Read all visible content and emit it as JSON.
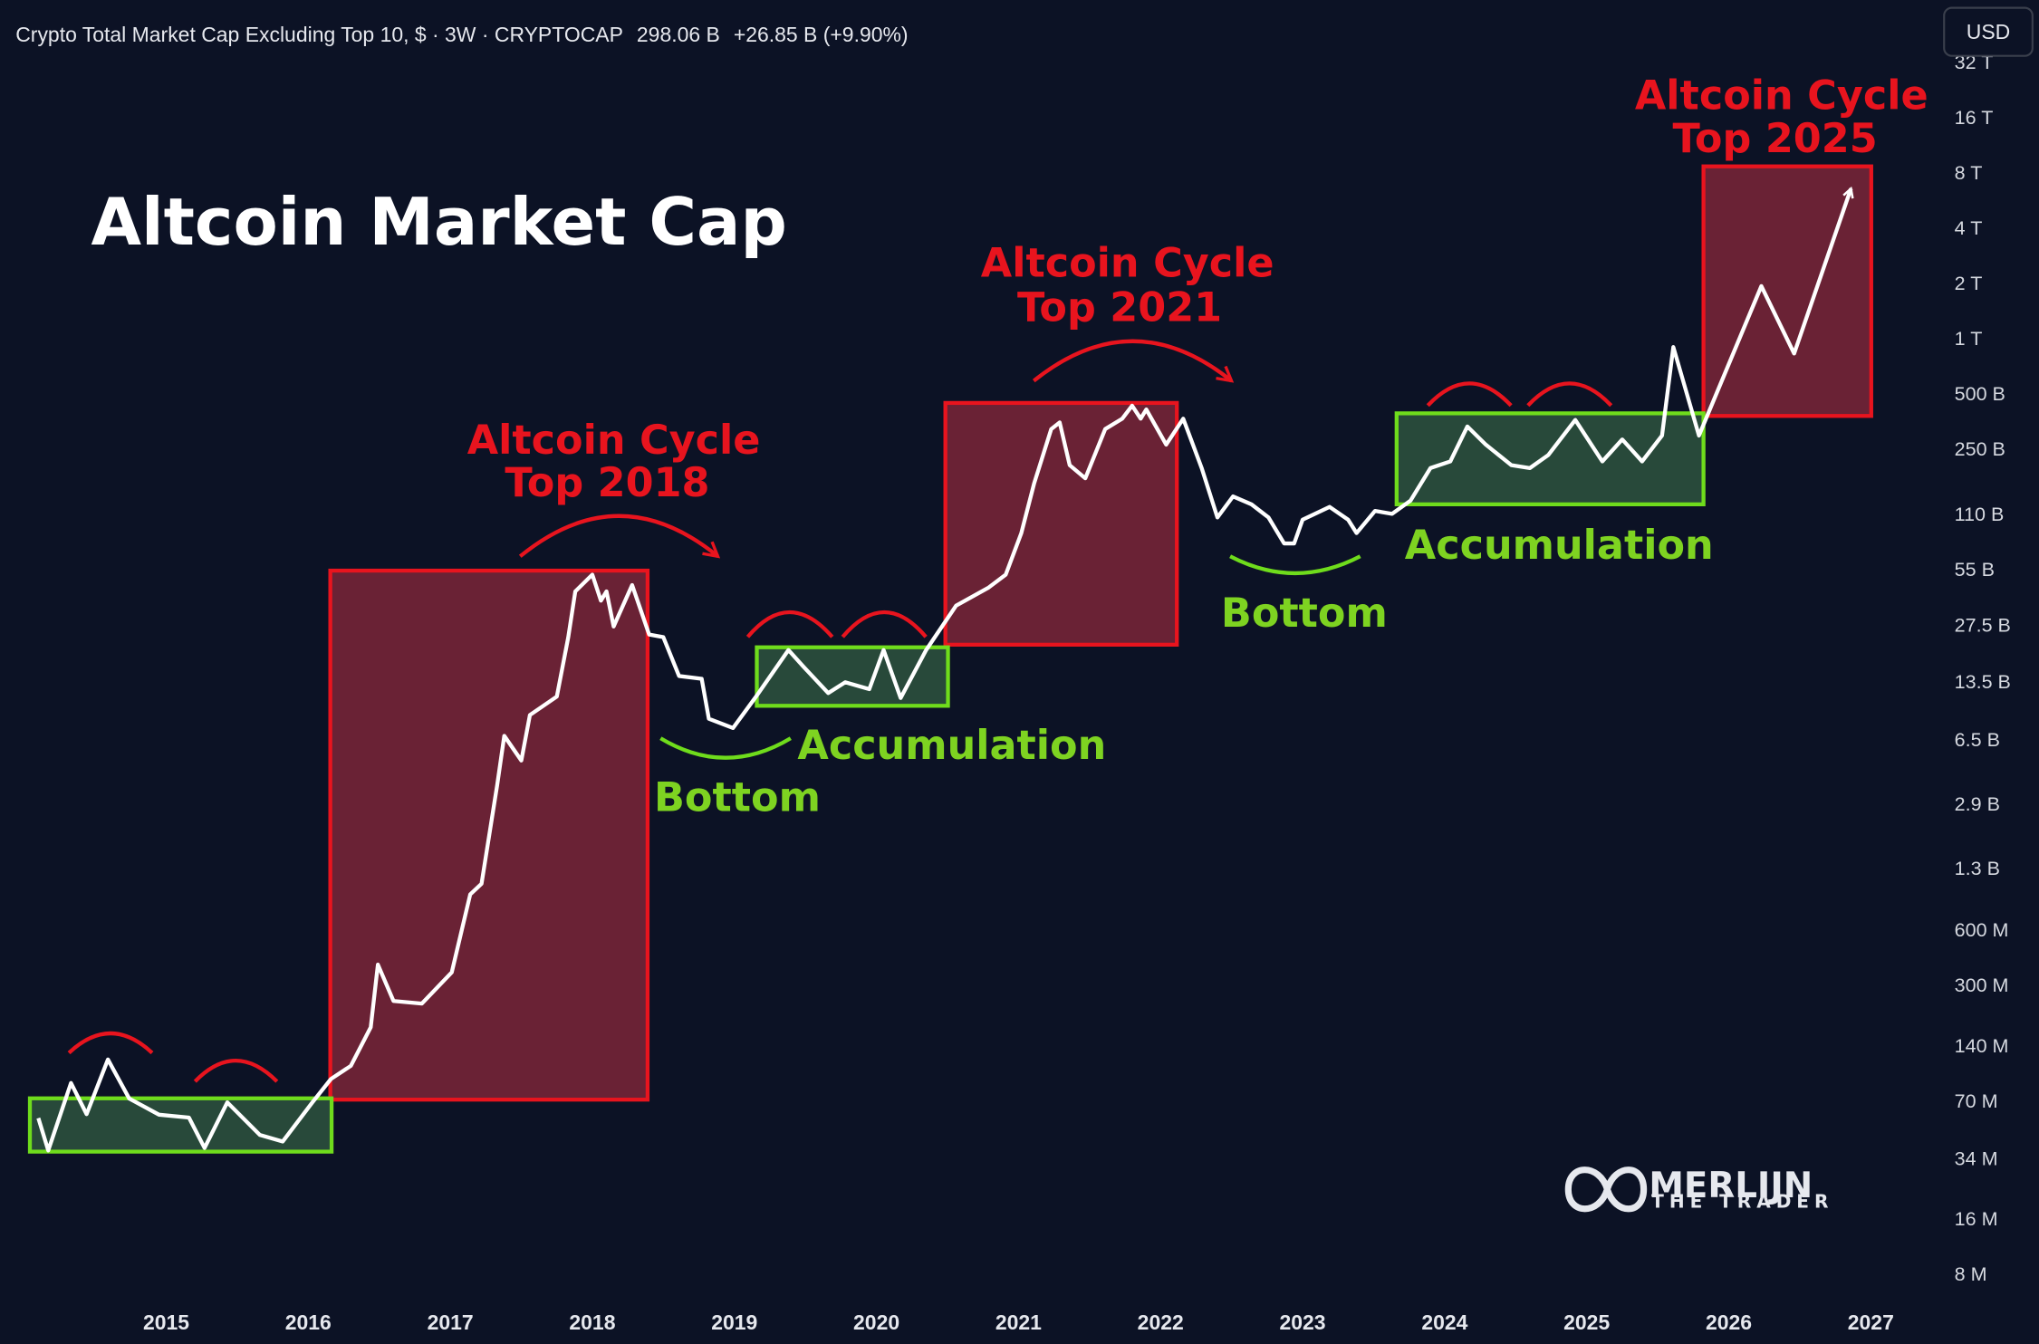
{
  "header": {
    "symbol": "Crypto Total Market Cap Excluding Top 10, $ · 3W · CRYPTOCAP",
    "last": "298.06 B",
    "change": "+26.85 B (+9.90%)"
  },
  "currency_button": "USD",
  "logo": {
    "name": "MERLIJN",
    "tagline": "THE TRADER"
  },
  "chart_data": {
    "type": "line",
    "title": "Altcoin Market Cap",
    "color": "#ffffff",
    "log_scale": true,
    "grid": false,
    "x": [
      2014.1,
      2014.17,
      2014.33,
      2014.44,
      2014.59,
      2014.74,
      2014.95,
      2015.16,
      2015.27,
      2015.43,
      2015.66,
      2015.82,
      2016.03,
      2016.16,
      2016.3,
      2016.44,
      2016.49,
      2016.6,
      2016.8,
      2017.01,
      2017.14,
      2017.22,
      2017.33,
      2017.38,
      2017.5,
      2017.56,
      2017.75,
      2017.83,
      2017.88,
      2018.0,
      2018.06,
      2018.1,
      2018.15,
      2018.28,
      2018.4,
      2018.5,
      2018.61,
      2018.77,
      2018.82,
      2018.99,
      2019.16,
      2019.38,
      2019.48,
      2019.66,
      2019.78,
      2019.95,
      2020.05,
      2020.17,
      2020.35,
      2020.56,
      2020.79,
      2020.91,
      2021.02,
      2021.11,
      2021.23,
      2021.29,
      2021.36,
      2021.47,
      2021.61,
      2021.73,
      2021.8,
      2021.86,
      2021.9,
      2022.04,
      2022.16,
      2022.29,
      2022.4,
      2022.51,
      2022.64,
      2022.76,
      2022.87,
      2022.94,
      2023.0,
      2023.19,
      2023.32,
      2023.38,
      2023.51,
      2023.63,
      2023.76,
      2023.9,
      2024.04,
      2024.16,
      2024.29,
      2024.47,
      2024.6,
      2024.73,
      2024.92,
      2025.11,
      2025.25,
      2025.39,
      2025.53,
      2025.61,
      2025.79,
      2026.23,
      2026.46,
      2026.86
    ],
    "values": [
      56600000.0,
      37700000.0,
      87900000.0,
      59400000.0,
      118000000.0,
      72300000.0,
      59000000.0,
      57000000.0,
      38900000.0,
      68900000.0,
      45800000.0,
      42200000.0,
      69000000.0,
      92400000.0,
      109000000.0,
      177000000.0,
      388000000.0,
      246000000.0,
      238000000.0,
      352000000.0,
      936000000.0,
      1070000000.0,
      3680000000.0,
      6850000000.0,
      5020000000.0,
      8890000000.0,
      11200000000.0,
      23600000000.0,
      41900000000.0,
      51700000000.0,
      37300000000.0,
      41900000000.0,
      27000000000.0,
      45400000000.0,
      24400000000.0,
      23600000000.0,
      14500000000.0,
      14000000000.0,
      8470000000.0,
      7550000000.0,
      11400000000.0,
      20100000000.0,
      16500000000.0,
      11700000000.0,
      13400000000.0,
      12300000000.0,
      20100000000.0,
      11000000000.0,
      20100000000.0,
      35000000000.0,
      44000000000.0,
      51700000000.0,
      87200000000.0,
      162000000000.0,
      321000000000.0,
      349000000000.0,
      204000000000.0,
      173000000000.0,
      321000000000.0,
      366000000000.0,
      431000000000.0,
      366000000000.0,
      411000000000.0,
      264000000000.0,
      366000000000.0,
      197000000000.0,
      106000000000.0,
      138000000000.0,
      125000000000.0,
      106000000000.0,
      76500000000.0,
      76500000000.0,
      103000000000.0,
      121000000000.0,
      103000000000.0,
      87200000000.0,
      115000000000.0,
      111000000000.0,
      131000000000.0,
      197000000000.0,
      214000000000.0,
      332000000000.0,
      264000000000.0,
      204000000000.0,
      197000000000.0,
      232000000000.0,
      360000000000.0,
      214000000000.0,
      282000000000.0,
      214000000000.0,
      296000000000.0,
      898000000000.0,
      296000000000.0,
      1930000000000.0,
      828000000000.0,
      6560000000000.0
    ],
    "xlim": [
      2013.83,
      2027.47
    ],
    "xticks": [
      2015,
      2016,
      2017,
      2018,
      2019,
      2020,
      2021,
      2022,
      2023,
      2024,
      2025,
      2026,
      2027
    ],
    "ylim": [
      5000000,
      45000000000000
    ],
    "yticks": [
      {
        "value": 8000000,
        "label": "8 M"
      },
      {
        "value": 16000000,
        "label": "16 M"
      },
      {
        "value": 34000000,
        "label": "34 M"
      },
      {
        "value": 70000000,
        "label": "70 M"
      },
      {
        "value": 140000000,
        "label": "140 M"
      },
      {
        "value": 300000000,
        "label": "300 M"
      },
      {
        "value": 600000000,
        "label": "600 M"
      },
      {
        "value": 1300000000,
        "label": "1.3 B"
      },
      {
        "value": 2900000000,
        "label": "2.9 B"
      },
      {
        "value": 6500000000,
        "label": "6.5 B"
      },
      {
        "value": 13500000000,
        "label": "13.5 B"
      },
      {
        "value": 27500000000,
        "label": "27.5 B"
      },
      {
        "value": 55000000000,
        "label": "55 B"
      },
      {
        "value": 110000000000,
        "label": "110 B"
      },
      {
        "value": 250000000000,
        "label": "250 B"
      },
      {
        "value": 500000000000,
        "label": "500 B"
      },
      {
        "value": 1000000000000,
        "label": "1 T"
      },
      {
        "value": 2000000000000,
        "label": "2 T"
      },
      {
        "value": 4000000000000,
        "label": "4 T"
      },
      {
        "value": 8000000000000,
        "label": "8 T"
      },
      {
        "value": 16000000000000,
        "label": "16 T"
      },
      {
        "value": 32000000000000,
        "label": "32 T"
      }
    ],
    "annotations": [
      [
        "Altcoin Cycle",
        "Top 2018"
      ],
      [
        "Altcoin Cycle",
        "Top 2021"
      ],
      [
        "Altcoin Cycle",
        "Top 2025"
      ],
      "Accumulation",
      "Accumulation",
      "Bottom",
      "Bottom"
    ]
  }
}
